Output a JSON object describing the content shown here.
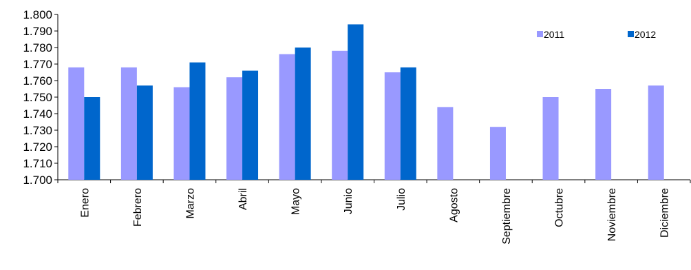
{
  "chart_data": {
    "type": "bar",
    "title": "",
    "xlabel": "",
    "ylabel": "",
    "categories": [
      "Enero",
      "Febrero",
      "Marzo",
      "Abril",
      "Mayo",
      "Junio",
      "Julio",
      "Agosto",
      "Septiembre",
      "Octubre",
      "Noviembre",
      "Diciembre"
    ],
    "series": [
      {
        "name": "2011",
        "color": "#9999ff",
        "values": [
          1.768,
          1.768,
          1.756,
          1.762,
          1.776,
          1.778,
          1.765,
          1.744,
          1.732,
          1.75,
          1.755,
          1.757
        ]
      },
      {
        "name": "2012",
        "color": "#0066cc",
        "values": [
          1.75,
          1.757,
          1.771,
          1.766,
          1.78,
          1.794,
          1.768,
          null,
          null,
          null,
          null,
          null
        ]
      }
    ],
    "ylim": [
      1.7,
      1.8
    ],
    "yticks": [
      "1.700",
      "1.710",
      "1.720",
      "1.730",
      "1.740",
      "1.750",
      "1.760",
      "1.770",
      "1.780",
      "1.790",
      "1.800"
    ],
    "grid": false,
    "legend_position": "top-right"
  }
}
